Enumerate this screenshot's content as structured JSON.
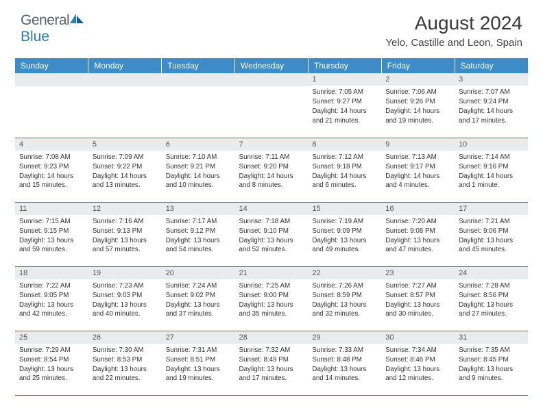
{
  "logo": {
    "word1": "General",
    "word2": "Blue"
  },
  "title": "August 2024",
  "location": "Yelo, Castille and Leon, Spain",
  "colors": {
    "header_bg": "#3d8bc7",
    "accent": "#2e7cb8",
    "daybar_bg": "#e9ebec",
    "text": "#333333",
    "logo_gray": "#5a6268"
  },
  "weekdays": [
    "Sunday",
    "Monday",
    "Tuesday",
    "Wednesday",
    "Thursday",
    "Friday",
    "Saturday"
  ],
  "weeks": [
    [
      {
        "n": "",
        "sr": "",
        "ss": "",
        "dl": ""
      },
      {
        "n": "",
        "sr": "",
        "ss": "",
        "dl": ""
      },
      {
        "n": "",
        "sr": "",
        "ss": "",
        "dl": ""
      },
      {
        "n": "",
        "sr": "",
        "ss": "",
        "dl": ""
      },
      {
        "n": "1",
        "sr": "Sunrise: 7:05 AM",
        "ss": "Sunset: 9:27 PM",
        "dl": "Daylight: 14 hours and 21 minutes."
      },
      {
        "n": "2",
        "sr": "Sunrise: 7:06 AM",
        "ss": "Sunset: 9:26 PM",
        "dl": "Daylight: 14 hours and 19 minutes."
      },
      {
        "n": "3",
        "sr": "Sunrise: 7:07 AM",
        "ss": "Sunset: 9:24 PM",
        "dl": "Daylight: 14 hours and 17 minutes."
      }
    ],
    [
      {
        "n": "4",
        "sr": "Sunrise: 7:08 AM",
        "ss": "Sunset: 9:23 PM",
        "dl": "Daylight: 14 hours and 15 minutes."
      },
      {
        "n": "5",
        "sr": "Sunrise: 7:09 AM",
        "ss": "Sunset: 9:22 PM",
        "dl": "Daylight: 14 hours and 13 minutes."
      },
      {
        "n": "6",
        "sr": "Sunrise: 7:10 AM",
        "ss": "Sunset: 9:21 PM",
        "dl": "Daylight: 14 hours and 10 minutes."
      },
      {
        "n": "7",
        "sr": "Sunrise: 7:11 AM",
        "ss": "Sunset: 9:20 PM",
        "dl": "Daylight: 14 hours and 8 minutes."
      },
      {
        "n": "8",
        "sr": "Sunrise: 7:12 AM",
        "ss": "Sunset: 9:18 PM",
        "dl": "Daylight: 14 hours and 6 minutes."
      },
      {
        "n": "9",
        "sr": "Sunrise: 7:13 AM",
        "ss": "Sunset: 9:17 PM",
        "dl": "Daylight: 14 hours and 4 minutes."
      },
      {
        "n": "10",
        "sr": "Sunrise: 7:14 AM",
        "ss": "Sunset: 9:16 PM",
        "dl": "Daylight: 14 hours and 1 minute."
      }
    ],
    [
      {
        "n": "11",
        "sr": "Sunrise: 7:15 AM",
        "ss": "Sunset: 9:15 PM",
        "dl": "Daylight: 13 hours and 59 minutes."
      },
      {
        "n": "12",
        "sr": "Sunrise: 7:16 AM",
        "ss": "Sunset: 9:13 PM",
        "dl": "Daylight: 13 hours and 57 minutes."
      },
      {
        "n": "13",
        "sr": "Sunrise: 7:17 AM",
        "ss": "Sunset: 9:12 PM",
        "dl": "Daylight: 13 hours and 54 minutes."
      },
      {
        "n": "14",
        "sr": "Sunrise: 7:18 AM",
        "ss": "Sunset: 9:10 PM",
        "dl": "Daylight: 13 hours and 52 minutes."
      },
      {
        "n": "15",
        "sr": "Sunrise: 7:19 AM",
        "ss": "Sunset: 9:09 PM",
        "dl": "Daylight: 13 hours and 49 minutes."
      },
      {
        "n": "16",
        "sr": "Sunrise: 7:20 AM",
        "ss": "Sunset: 9:08 PM",
        "dl": "Daylight: 13 hours and 47 minutes."
      },
      {
        "n": "17",
        "sr": "Sunrise: 7:21 AM",
        "ss": "Sunset: 9:06 PM",
        "dl": "Daylight: 13 hours and 45 minutes."
      }
    ],
    [
      {
        "n": "18",
        "sr": "Sunrise: 7:22 AM",
        "ss": "Sunset: 9:05 PM",
        "dl": "Daylight: 13 hours and 42 minutes."
      },
      {
        "n": "19",
        "sr": "Sunrise: 7:23 AM",
        "ss": "Sunset: 9:03 PM",
        "dl": "Daylight: 13 hours and 40 minutes."
      },
      {
        "n": "20",
        "sr": "Sunrise: 7:24 AM",
        "ss": "Sunset: 9:02 PM",
        "dl": "Daylight: 13 hours and 37 minutes."
      },
      {
        "n": "21",
        "sr": "Sunrise: 7:25 AM",
        "ss": "Sunset: 9:00 PM",
        "dl": "Daylight: 13 hours and 35 minutes."
      },
      {
        "n": "22",
        "sr": "Sunrise: 7:26 AM",
        "ss": "Sunset: 8:59 PM",
        "dl": "Daylight: 13 hours and 32 minutes."
      },
      {
        "n": "23",
        "sr": "Sunrise: 7:27 AM",
        "ss": "Sunset: 8:57 PM",
        "dl": "Daylight: 13 hours and 30 minutes."
      },
      {
        "n": "24",
        "sr": "Sunrise: 7:28 AM",
        "ss": "Sunset: 8:56 PM",
        "dl": "Daylight: 13 hours and 27 minutes."
      }
    ],
    [
      {
        "n": "25",
        "sr": "Sunrise: 7:29 AM",
        "ss": "Sunset: 8:54 PM",
        "dl": "Daylight: 13 hours and 25 minutes."
      },
      {
        "n": "26",
        "sr": "Sunrise: 7:30 AM",
        "ss": "Sunset: 8:53 PM",
        "dl": "Daylight: 13 hours and 22 minutes."
      },
      {
        "n": "27",
        "sr": "Sunrise: 7:31 AM",
        "ss": "Sunset: 8:51 PM",
        "dl": "Daylight: 13 hours and 19 minutes."
      },
      {
        "n": "28",
        "sr": "Sunrise: 7:32 AM",
        "ss": "Sunset: 8:49 PM",
        "dl": "Daylight: 13 hours and 17 minutes."
      },
      {
        "n": "29",
        "sr": "Sunrise: 7:33 AM",
        "ss": "Sunset: 8:48 PM",
        "dl": "Daylight: 13 hours and 14 minutes."
      },
      {
        "n": "30",
        "sr": "Sunrise: 7:34 AM",
        "ss": "Sunset: 8:46 PM",
        "dl": "Daylight: 13 hours and 12 minutes."
      },
      {
        "n": "31",
        "sr": "Sunrise: 7:35 AM",
        "ss": "Sunset: 8:45 PM",
        "dl": "Daylight: 13 hours and 9 minutes."
      }
    ]
  ]
}
